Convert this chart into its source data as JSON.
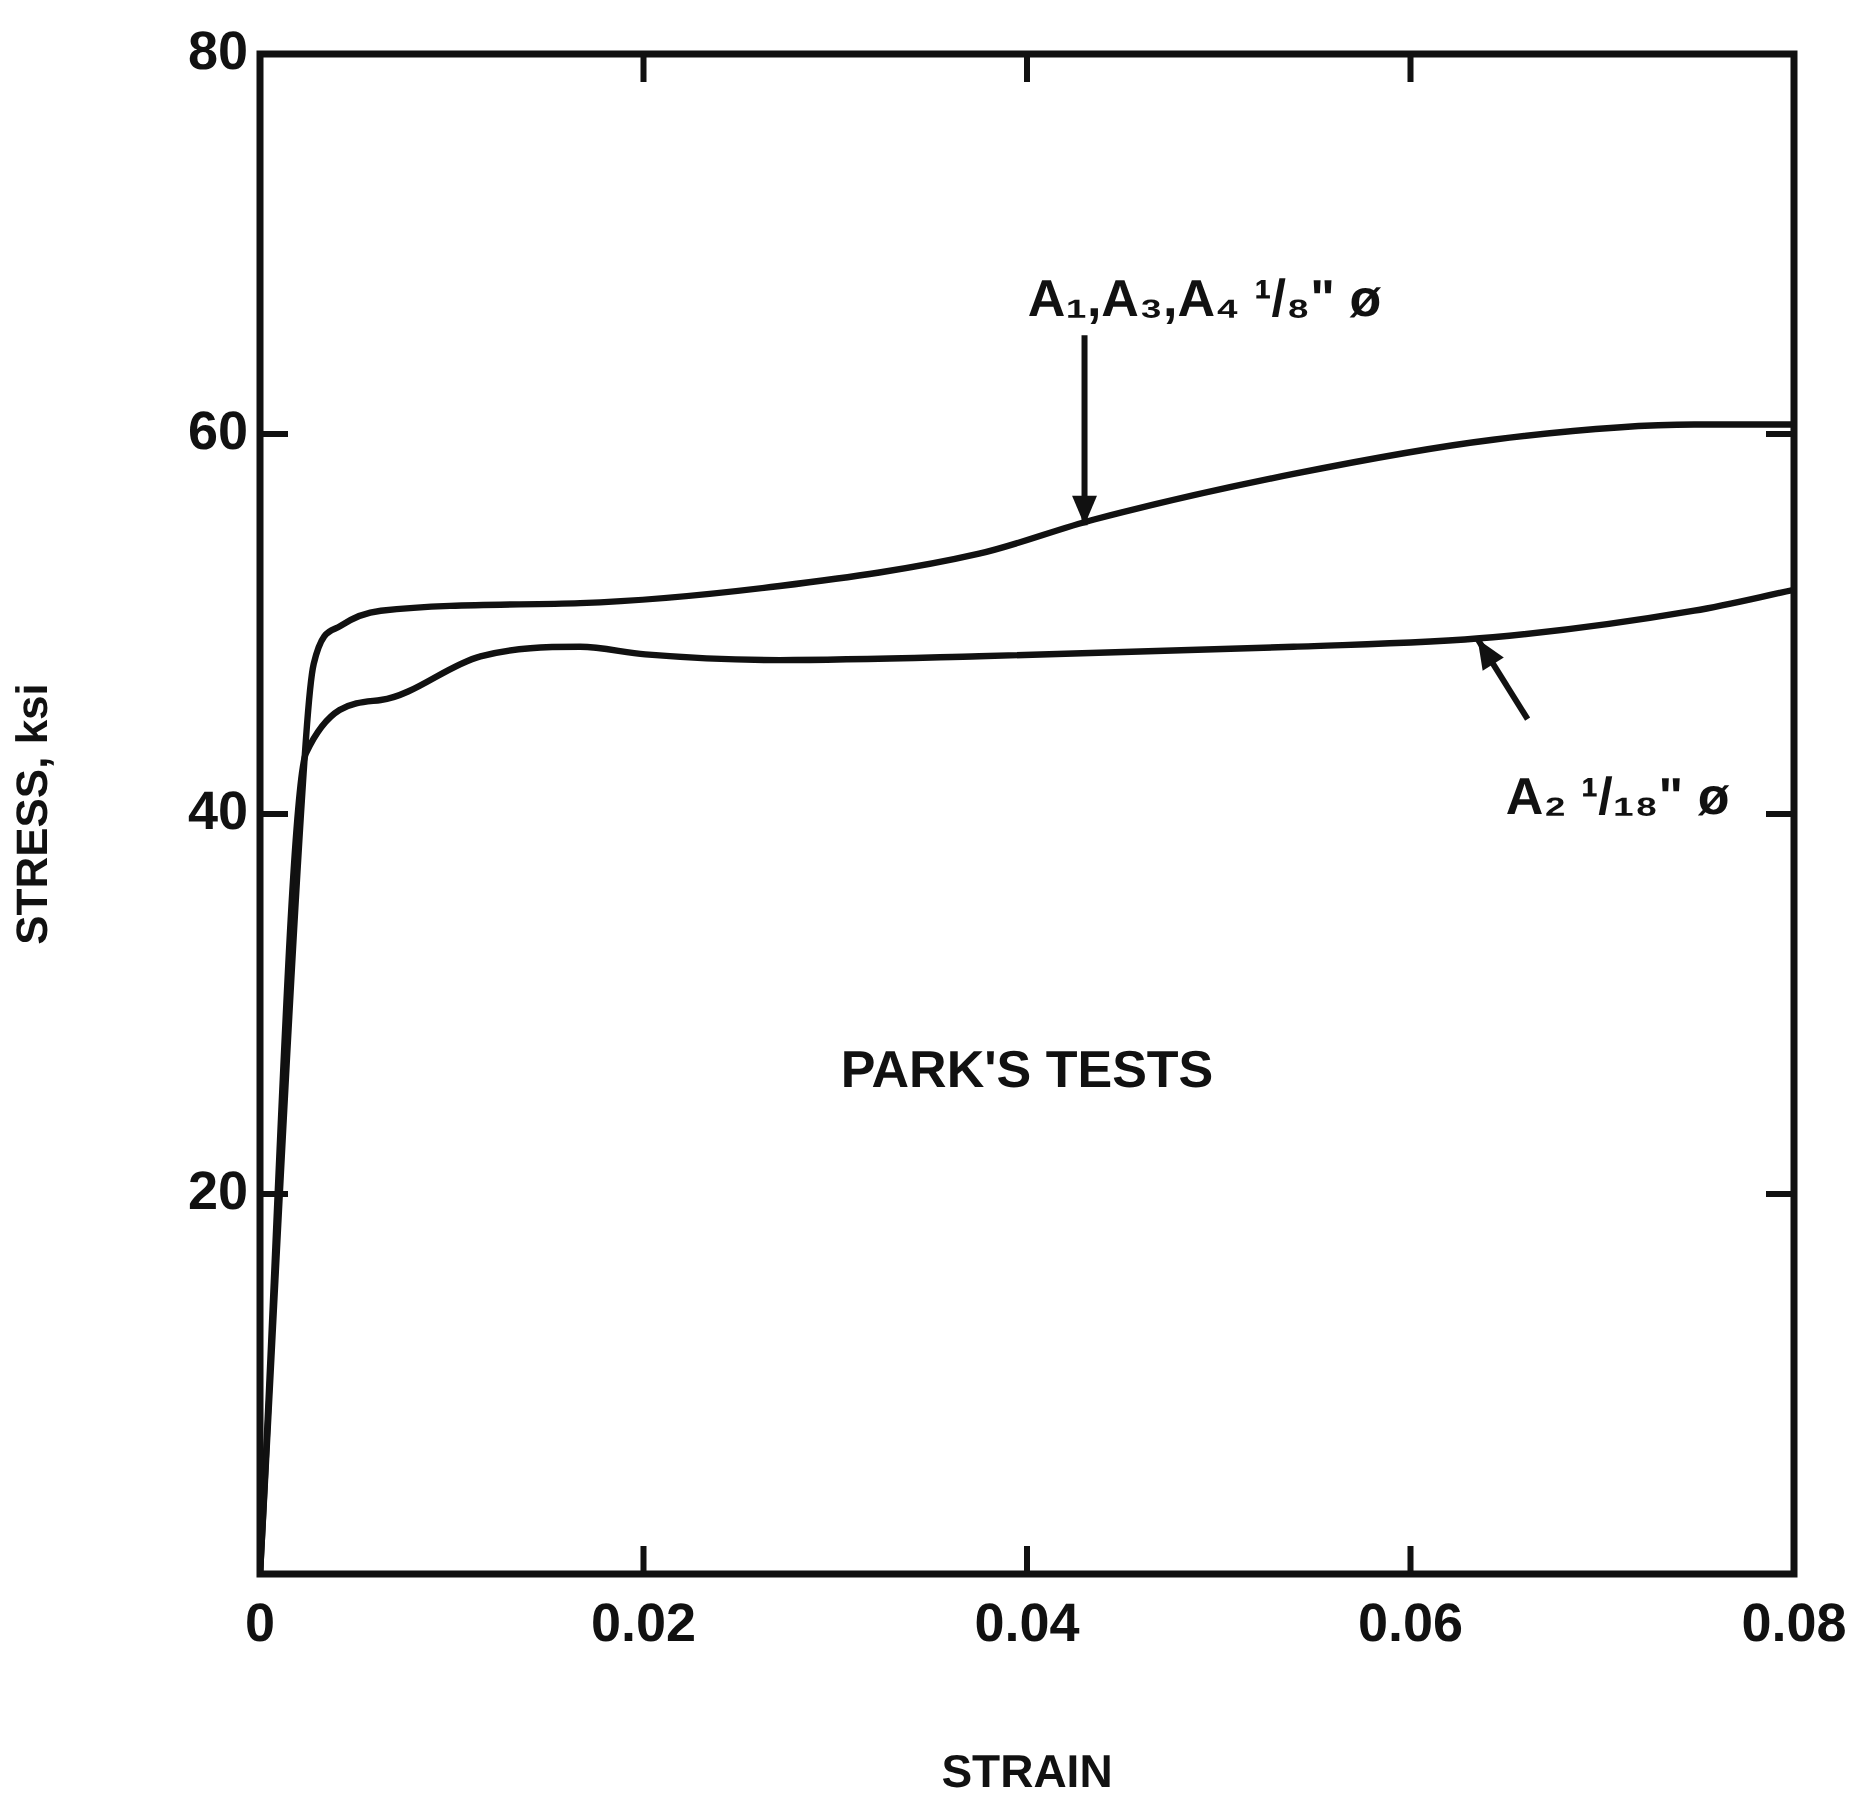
{
  "chart_data": {
    "type": "line",
    "xlabel": "STRAIN",
    "ylabel": "STRESS, ksi",
    "xlim": [
      0,
      0.08
    ],
    "xticks": [
      0,
      0.02,
      0.04,
      0.06,
      0.08
    ],
    "ylim": [
      0,
      80
    ],
    "yticks": [
      20,
      40,
      60,
      80
    ],
    "marker": "none",
    "line_style": "solid",
    "legend": false,
    "series": [
      {
        "color": "#111111",
        "x": [
          0,
          0.0024,
          0.0028,
          0.0042,
          0.0063,
          0.0167,
          0.0271,
          0.0375,
          0.0435,
          0.0539,
          0.0643,
          0.0748,
          0.08
        ],
        "values": [
          0,
          44,
          47.9,
          49.9,
          50.7,
          51.1,
          52,
          53.7,
          55.5,
          57.9,
          59.7,
          60.5,
          60.5
        ]
      },
      {
        "color": "#111111",
        "x": [
          0,
          0.0024,
          0.0063,
          0.0115,
          0.0167,
          0.0201,
          0.0271,
          0.0375,
          0.0539,
          0.0643,
          0.0748,
          0.08
        ],
        "values": [
          0,
          43.2,
          46,
          48.3,
          48.8,
          48.4,
          48.1,
          48.3,
          48.8,
          49.3,
          50.7,
          51.8
        ]
      }
    ],
    "annotations": [
      {
        "text": "A₁,A₃,A₄ ¹/₈\" ø",
        "x": 0.043,
        "y": 55.2
      },
      {
        "text": "A₂ ¹/₁₈\" ø",
        "x": 0.0635,
        "y": 49.2
      },
      "PARK'S TESTS"
    ]
  }
}
